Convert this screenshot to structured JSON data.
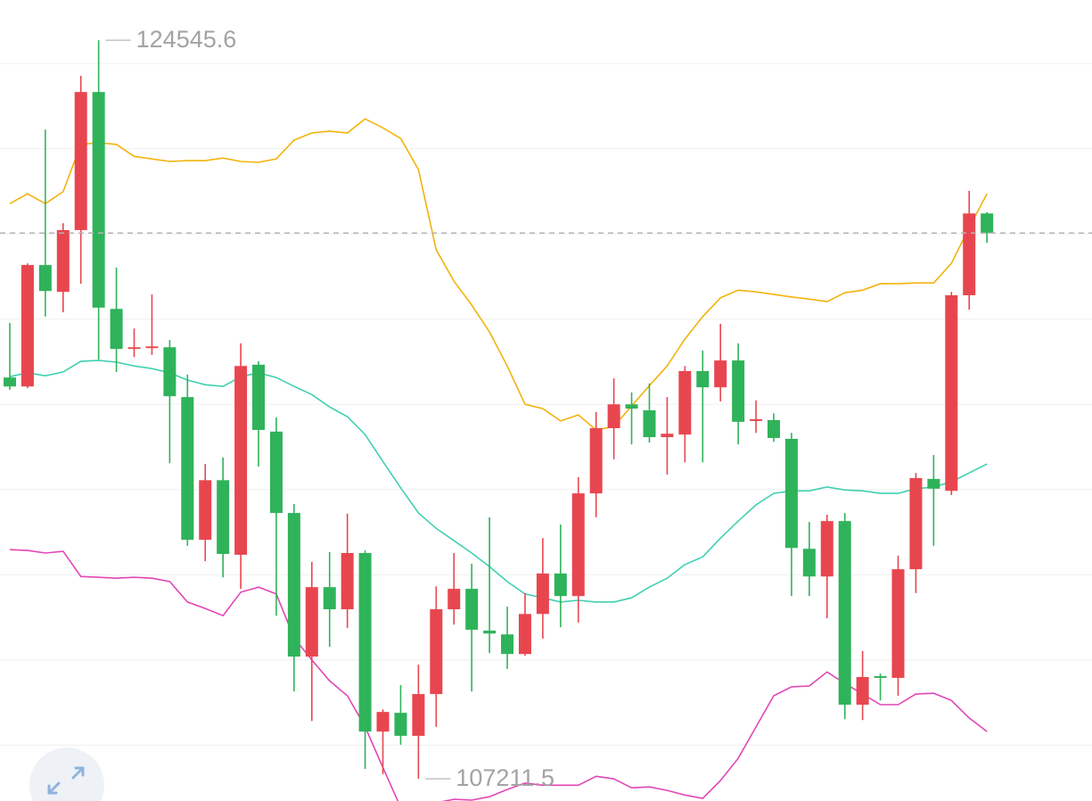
{
  "chart_data": {
    "type": "candlestick",
    "ylim": [
      106690,
      125490
    ],
    "yticks": [
      108000,
      110000,
      112000,
      114000,
      116000,
      118000,
      120000,
      122000,
      124000
    ],
    "grid": true,
    "up_color": "#e8464f",
    "down_color": "#2fb35a",
    "open": [
      116630,
      116420,
      119270,
      118640,
      120090,
      123330,
      118240,
      117300,
      117320,
      117340,
      116170,
      112820,
      114220,
      112470,
      116930,
      115360,
      113450,
      110080,
      111710,
      111190,
      112510,
      108320,
      108760,
      108220,
      109200,
      111190,
      111670,
      110690,
      110600,
      110140,
      111080,
      112030,
      111500,
      113910,
      115440,
      116000,
      115860,
      115230,
      115290,
      116780,
      116400,
      117030,
      115610,
      115630,
      115190,
      112610,
      111960,
      113260,
      108950,
      109620,
      109580,
      112130,
      114250,
      113970,
      118560,
      120480
    ],
    "high": [
      117910,
      119310,
      122450,
      120250,
      123710,
      124545.6,
      119210,
      117780,
      118580,
      117510,
      116700,
      114600,
      114750,
      117430,
      117010,
      115690,
      113660,
      112300,
      112530,
      113430,
      112570,
      108840,
      109410,
      109890,
      111730,
      112510,
      112260,
      113350,
      111250,
      111570,
      112860,
      113180,
      114290,
      115820,
      116610,
      116280,
      116490,
      116170,
      116900,
      117260,
      117890,
      117430,
      116090,
      115790,
      115330,
      113240,
      113410,
      113450,
      110210,
      109680,
      112450,
      114390,
      114810,
      118640,
      121010,
      120510
    ],
    "low": [
      116340,
      116380,
      118060,
      118160,
      118830,
      117050,
      116760,
      117110,
      117160,
      114620,
      112680,
      112320,
      111940,
      111670,
      114540,
      111040,
      109260,
      108570,
      110310,
      110750,
      107440,
      107320,
      108010,
      107211.5,
      108430,
      110830,
      109260,
      110160,
      109790,
      110100,
      110500,
      110770,
      110880,
      113350,
      114710,
      115060,
      115100,
      114350,
      114640,
      114640,
      116070,
      115060,
      115330,
      115120,
      111500,
      111500,
      110980,
      108610,
      108590,
      109050,
      109160,
      111570,
      112680,
      113870,
      118220,
      119790
    ],
    "close": [
      116420,
      119270,
      118660,
      120090,
      123330,
      118270,
      117300,
      117340,
      117360,
      116190,
      112820,
      114220,
      112490,
      116900,
      115400,
      113450,
      110080,
      111710,
      111190,
      112510,
      108320,
      108780,
      108220,
      109200,
      111190,
      111670,
      110710,
      110620,
      110140,
      111080,
      112030,
      111500,
      113910,
      115440,
      116000,
      115900,
      115230,
      115310,
      116780,
      116400,
      117030,
      115590,
      115650,
      115210,
      112630,
      111960,
      113260,
      108950,
      109600,
      109580,
      112130,
      114270,
      114020,
      118560,
      120480,
      120020
    ],
    "lines": [
      {
        "color": "#f2b30c",
        "values": [
          120710,
          120940,
          120710,
          120990,
          122100,
          122140,
          122100,
          121820,
          121760,
          121700,
          121720,
          121720,
          121780,
          121700,
          121680,
          121760,
          122200,
          122370,
          122410,
          122370,
          122700,
          122490,
          122240,
          121510,
          119630,
          118890,
          118330,
          117700,
          116900,
          116000,
          115900,
          115610,
          115750,
          115400,
          115480,
          115960,
          116440,
          116900,
          117530,
          118060,
          118500,
          118680,
          118640,
          118580,
          118520,
          118470,
          118410,
          118620,
          118680,
          118830,
          118830,
          118850,
          118850,
          119310,
          120150,
          120940
        ]
      },
      {
        "color": "#3fd0b2",
        "values": [
          116650,
          116740,
          116670,
          116760,
          117010,
          117030,
          116990,
          116900,
          116840,
          116740,
          116570,
          116460,
          116420,
          116650,
          116740,
          116630,
          116420,
          116230,
          115940,
          115710,
          115290,
          114660,
          114040,
          113450,
          113090,
          112800,
          112510,
          112190,
          111840,
          111550,
          111460,
          111360,
          111400,
          111360,
          111360,
          111460,
          111710,
          111920,
          112240,
          112420,
          112860,
          113260,
          113640,
          113910,
          113970,
          113970,
          114060,
          113990,
          113970,
          113910,
          113910,
          114020,
          114060,
          114180,
          114390,
          114600
        ]
      },
      {
        "color": "#e146b6",
        "values": [
          112590,
          112570,
          112510,
          112550,
          111960,
          111940,
          111920,
          111940,
          111920,
          111840,
          111360,
          111210,
          111040,
          111590,
          111710,
          111550,
          110520,
          110000,
          109510,
          109160,
          108430,
          107480,
          106540,
          106440,
          106650,
          106730,
          106710,
          106790,
          106960,
          107110,
          107060,
          107060,
          107060,
          107270,
          107210,
          107000,
          107020,
          106940,
          106830,
          106750,
          107170,
          107690,
          108430,
          109160,
          109370,
          109390,
          109720,
          109450,
          109200,
          108950,
          108950,
          109200,
          109220,
          109050,
          108640,
          108320
        ]
      }
    ]
  }
}
